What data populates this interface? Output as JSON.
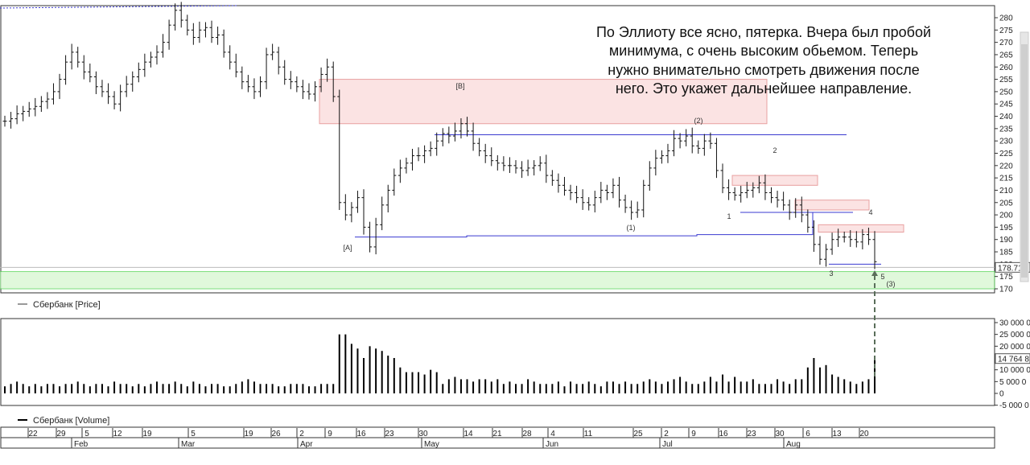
{
  "chart_data": [
    {
      "type": "ohlc",
      "legend": "Сбербанк [Price]",
      "ylim": [
        168,
        284
      ],
      "yticks": [
        170,
        175,
        180,
        185,
        190,
        195,
        200,
        205,
        210,
        215,
        220,
        225,
        230,
        235,
        240,
        245,
        250,
        255,
        260,
        265,
        270,
        275,
        280
      ],
      "last_price_label": "178.71",
      "grid": false,
      "comment": [
        "По Эллиоту все ясно, пятерка. Вчера был пробой",
        "минимума, с очень высоким обьемом. Теперь",
        "нужно внимательно смотреть движения после",
        "него. Это укажет дальнейшее направление."
      ],
      "close_series": [
        238,
        239,
        241,
        242,
        243,
        244,
        246,
        247,
        250,
        255,
        262,
        266,
        262,
        258,
        256,
        252,
        250,
        248,
        245,
        250,
        253,
        256,
        259,
        262,
        264,
        266,
        270,
        277,
        283,
        279,
        275,
        272,
        275,
        276,
        272,
        273,
        266,
        262,
        258,
        254,
        252,
        250,
        254,
        265,
        266,
        260,
        255,
        254,
        252,
        250,
        249,
        252,
        257,
        260,
        248,
        205,
        200,
        203,
        207,
        195,
        187,
        196,
        204,
        210,
        216,
        219,
        221,
        224,
        224,
        226,
        227,
        230,
        233,
        232,
        234,
        237,
        234,
        229,
        226,
        224,
        222,
        221,
        220,
        220,
        219,
        218,
        219,
        220,
        221,
        216,
        214,
        212,
        210,
        209,
        207,
        205,
        204,
        207,
        210,
        209,
        212,
        206,
        203,
        201,
        202,
        212,
        219,
        223,
        224,
        226,
        231,
        230,
        232,
        228,
        227,
        230,
        229,
        218,
        211,
        209,
        208,
        209,
        210,
        211,
        213,
        209,
        207,
        206,
        204,
        201,
        204,
        200,
        195,
        188,
        182,
        186,
        190,
        191,
        191,
        190,
        189,
        192,
        190,
        181
      ],
      "annotations": [
        "[A]",
        "[B]",
        "(1)",
        "(2)",
        "(3)",
        "1",
        "2",
        "3",
        "4",
        "5"
      ]
    },
    {
      "type": "bar",
      "legend": "Сбербанк [Volume]",
      "ylim": [
        -5000000,
        30000000
      ],
      "yticks": [
        "30 000 0",
        "25 000 0",
        "20 000 0",
        "15 000 0",
        "10 000 0",
        "5 000 0",
        "0",
        "-5 000 0"
      ],
      "last_volume_label": "14 764 8",
      "values_millions": [
        3,
        4,
        5,
        4,
        3,
        4,
        3,
        4,
        4,
        3,
        4,
        4,
        5,
        4,
        3,
        4,
        4,
        3,
        5,
        4,
        4,
        3,
        4,
        3,
        4,
        5,
        4,
        4,
        5,
        4,
        3,
        5,
        4,
        3,
        4,
        4,
        3,
        3,
        4,
        5,
        6,
        5,
        4,
        4,
        4,
        3,
        3,
        4,
        4,
        4,
        3,
        3,
        4,
        4,
        4,
        25,
        25,
        21,
        19,
        15,
        20,
        19,
        18,
        16,
        15,
        11,
        9,
        9,
        9,
        8,
        10,
        9,
        4,
        6,
        7,
        6,
        6,
        5,
        6,
        6,
        5,
        6,
        4,
        5,
        4,
        4,
        6,
        5,
        4,
        4,
        4,
        5,
        3,
        5,
        4,
        4,
        5,
        4,
        3,
        5,
        5,
        4,
        5,
        4,
        4,
        5,
        6,
        5,
        4,
        5,
        6,
        7,
        5,
        4,
        4,
        5,
        7,
        5,
        8,
        5,
        7,
        5,
        5,
        6,
        4,
        4,
        4,
        6,
        5,
        4,
        6,
        6,
        11,
        15,
        11,
        12,
        8,
        7,
        6,
        5,
        4,
        5,
        6,
        15
      ]
    }
  ],
  "x_axis": {
    "day_labels": [
      "22",
      "29",
      "5",
      "12",
      "19",
      "5",
      "19",
      "26",
      "2",
      "9",
      "16",
      "23",
      "30",
      "14",
      "21",
      "28",
      "4",
      "11",
      "25",
      "2",
      "9",
      "16",
      "23",
      "30",
      "6",
      "13",
      "20"
    ],
    "month_labels": [
      "Feb",
      "Mar",
      "Apr",
      "May",
      "Jun",
      "Jul",
      "Aug"
    ]
  }
}
